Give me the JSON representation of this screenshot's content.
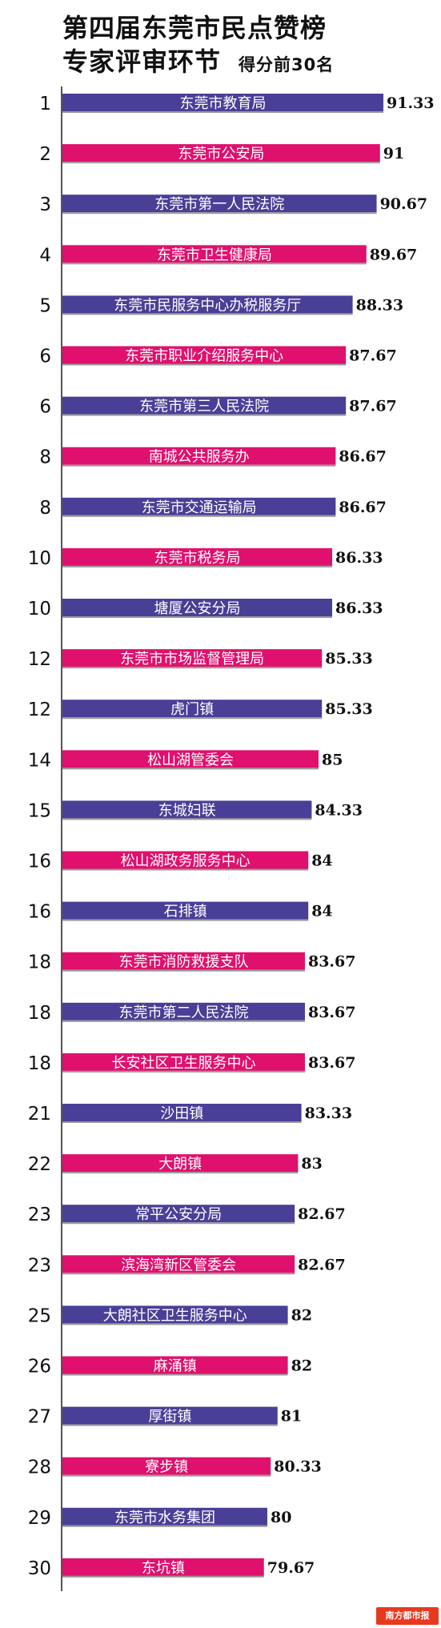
{
  "header": {
    "title_line1": "第四届东莞市民点赞榜",
    "title_line2": "专家评审环节",
    "subtitle": "得分前30名"
  },
  "watermark": "南方都市报",
  "colors": {
    "odd": "#4a3f96",
    "even": "#e0106e"
  },
  "chart_data": {
    "type": "bar",
    "orientation": "horizontal",
    "title": "第四届东莞市民点赞榜 专家评审环节 得分前30名",
    "xlim": [
      0,
      95
    ],
    "grid": false,
    "legend": "none",
    "ranks": [
      1,
      2,
      3,
      4,
      5,
      6,
      6,
      8,
      8,
      10,
      10,
      12,
      12,
      14,
      15,
      16,
      16,
      18,
      18,
      18,
      21,
      22,
      23,
      23,
      25,
      26,
      27,
      28,
      29,
      30
    ],
    "categories": [
      "东莞市教育局",
      "东莞市公安局",
      "东莞市第一人民法院",
      "东莞市卫生健康局",
      "东莞市民服务中心办税服务厅",
      "东莞市职业介绍服务中心",
      "东莞市第三人民法院",
      "南城公共服务办",
      "东莞市交通运输局",
      "东莞市税务局",
      "塘厦公安分局",
      "东莞市市场监督管理局",
      "虎门镇",
      "松山湖管委会",
      "东城妇联",
      "松山湖政务服务中心",
      "石排镇",
      "东莞市消防救援支队",
      "东莞市第二人民法院",
      "长安社区卫生服务中心",
      "沙田镇",
      "大朗镇",
      "常平公安分局",
      "滨海湾新区管委会",
      "大朗社区卫生服务中心",
      "麻涌镇",
      "厚街镇",
      "寮步镇",
      "东莞市水务集团",
      "东坑镇"
    ],
    "values": [
      91.33,
      91,
      90.67,
      89.67,
      88.33,
      87.67,
      87.67,
      86.67,
      86.67,
      86.33,
      86.33,
      85.33,
      85.33,
      85,
      84.33,
      84,
      84,
      83.67,
      83.67,
      83.67,
      83.33,
      83,
      82.67,
      82.67,
      82,
      82,
      81,
      80.33,
      80,
      79.67
    ],
    "value_labels": [
      "91.33",
      "91",
      "90.67",
      "89.67",
      "88.33",
      "87.67",
      "87.67",
      "86.67",
      "86.67",
      "86.33",
      "86.33",
      "85.33",
      "85.33",
      "85",
      "84.33",
      "84",
      "84",
      "83.67",
      "83.67",
      "83.67",
      "83.33",
      "83",
      "82.67",
      "82.67",
      "82",
      "82",
      "81",
      "80.33",
      "80",
      "79.67"
    ]
  }
}
